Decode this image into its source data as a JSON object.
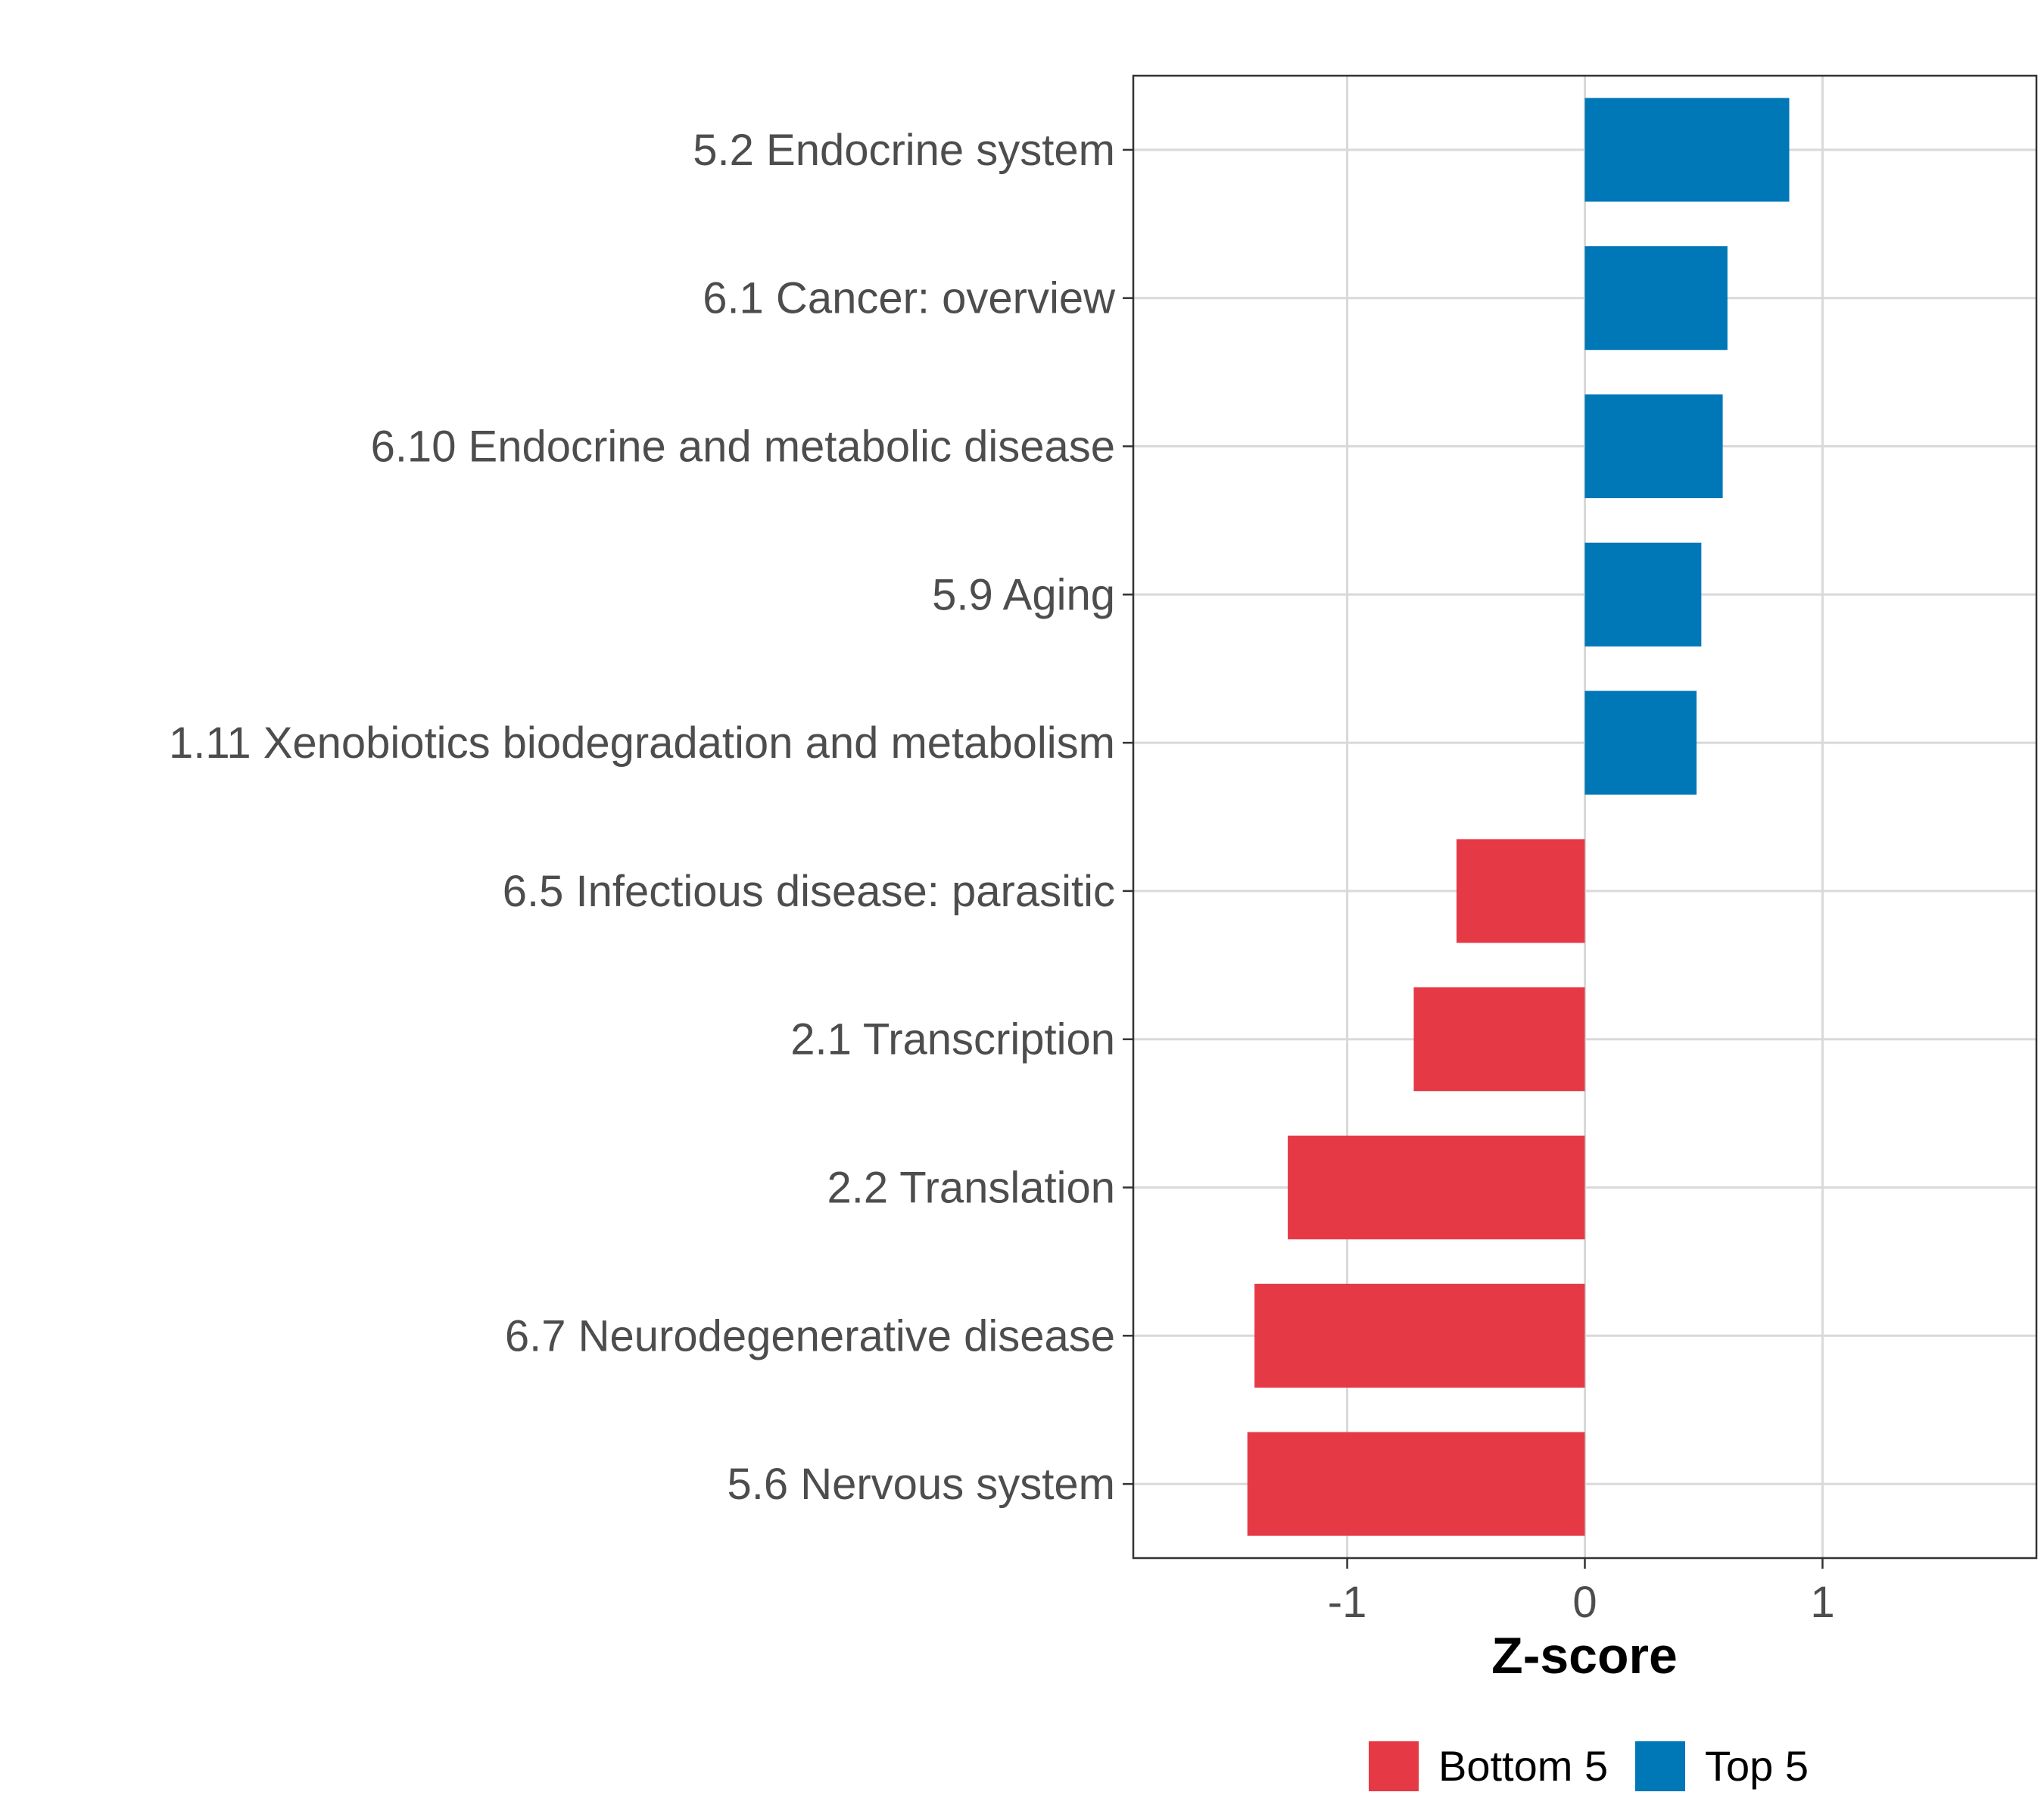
{
  "chart_data": {
    "type": "bar",
    "orientation": "horizontal",
    "categories": [
      "5.2 Endocrine system",
      "6.1 Cancer: overview",
      "6.10 Endocrine and metabolic disease",
      "5.9 Aging",
      "1.11 Xenobiotics biodegradation and metabolism",
      "6.5 Infectious disease: parasitic",
      "2.1 Transcription",
      "2.2 Translation",
      "6.7 Neurodegenerative disease",
      "5.6 Nervous system"
    ],
    "values": [
      0.86,
      0.6,
      0.58,
      0.49,
      0.47,
      -0.54,
      -0.72,
      -1.25,
      -1.39,
      -1.42
    ],
    "groups": [
      "Top 5",
      "Top 5",
      "Top 5",
      "Top 5",
      "Top 5",
      "Bottom 5",
      "Bottom 5",
      "Bottom 5",
      "Bottom 5",
      "Bottom 5"
    ],
    "xlabel": "Z-score",
    "ylabel": "",
    "xlim": [
      -1.9,
      1.9
    ],
    "xticks": [
      -1,
      0,
      1
    ],
    "xtick_labels": [
      "-1",
      "0",
      "1"
    ],
    "grid": true,
    "legend": {
      "position": "bottom",
      "entries": [
        {
          "label": "Bottom 5",
          "color": "#e63946"
        },
        {
          "label": "Top 5",
          "color": "#0077b6"
        }
      ]
    },
    "colors": {
      "Top 5": "#0077b6",
      "Bottom 5": "#e63946"
    }
  }
}
